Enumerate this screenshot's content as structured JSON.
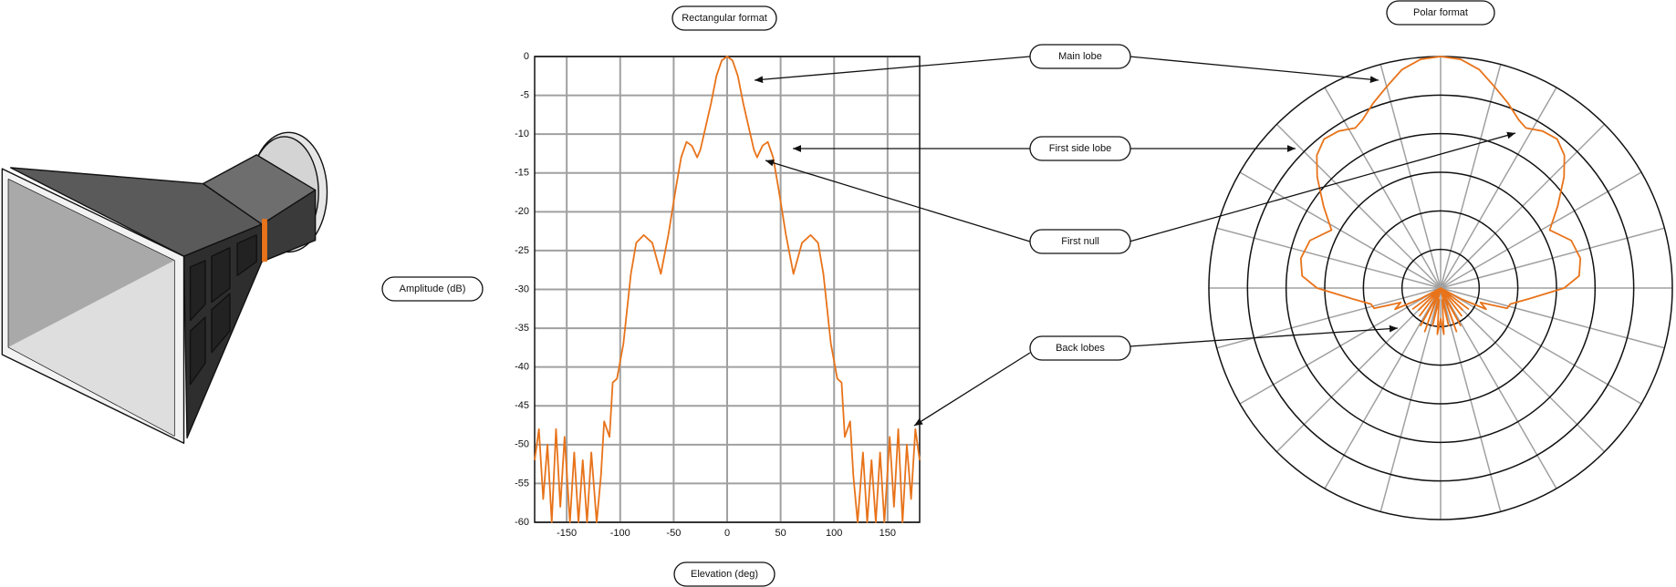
{
  "labels": {
    "main_lobe": "Main lobe",
    "first_side_lobe": "First side lobe",
    "first_null": "First null",
    "back_lobes": "Back lobes",
    "polar_title": "Polar format"
  },
  "chart_data": {
    "type": "line",
    "title": "Rectangular format",
    "xlabel": "Elevation (deg)",
    "ylabel": "Amplitude (dB)",
    "x": [
      -180,
      -176,
      -172,
      -168,
      -164,
      -160,
      -156,
      -152,
      -147,
      -143,
      -139,
      -135,
      -131,
      -127,
      -122,
      -118,
      -115,
      -110,
      -107,
      -103,
      -97,
      -90,
      -85,
      -78,
      -70,
      -62,
      -55,
      -48,
      -43,
      -38,
      -33,
      -28,
      -25,
      -20,
      -15,
      -10,
      -5,
      0,
      5,
      10,
      15,
      20,
      25,
      28,
      33,
      38,
      43,
      48,
      55,
      62,
      70,
      78,
      85,
      90,
      97,
      103,
      107,
      110,
      115,
      118,
      122,
      127,
      131,
      135,
      139,
      143,
      147,
      152,
      156,
      160,
      164,
      168,
      172,
      176,
      180
    ],
    "series": [
      {
        "color": "#e8731a",
        "values": [
          -52,
          -48,
          -57,
          -50,
          -60,
          -48,
          -58,
          -49,
          -60,
          -51,
          -60,
          -52,
          -60,
          -51,
          -60,
          -54,
          -47,
          -49,
          -42,
          -41.5,
          -37,
          -28,
          -24,
          -23,
          -24,
          -28,
          -23,
          -17,
          -13,
          -11,
          -11.5,
          -13,
          -12,
          -9,
          -6,
          -2.5,
          -0.5,
          0,
          -0.5,
          -2.5,
          -6,
          -9,
          -12,
          -13,
          -11.5,
          -11,
          -13,
          -17,
          -23,
          -28,
          -24,
          -23,
          -24,
          -28,
          -37,
          -41.5,
          -42,
          -49,
          -47,
          -54,
          -60,
          -51,
          -60,
          -52,
          -60,
          -51,
          -60,
          -49,
          -58,
          -48,
          -60,
          -50,
          -57,
          -48,
          -52
        ]
      }
    ],
    "xlim": [
      -180,
      180
    ],
    "ylim": [
      -60,
      0
    ],
    "xticks": [
      -150,
      -100,
      -50,
      0,
      50,
      100,
      150
    ],
    "yticks": [
      0,
      -5,
      -10,
      -15,
      -20,
      -25,
      -30,
      -35,
      -40,
      -45,
      -50,
      -55,
      -60
    ],
    "grid": true
  }
}
